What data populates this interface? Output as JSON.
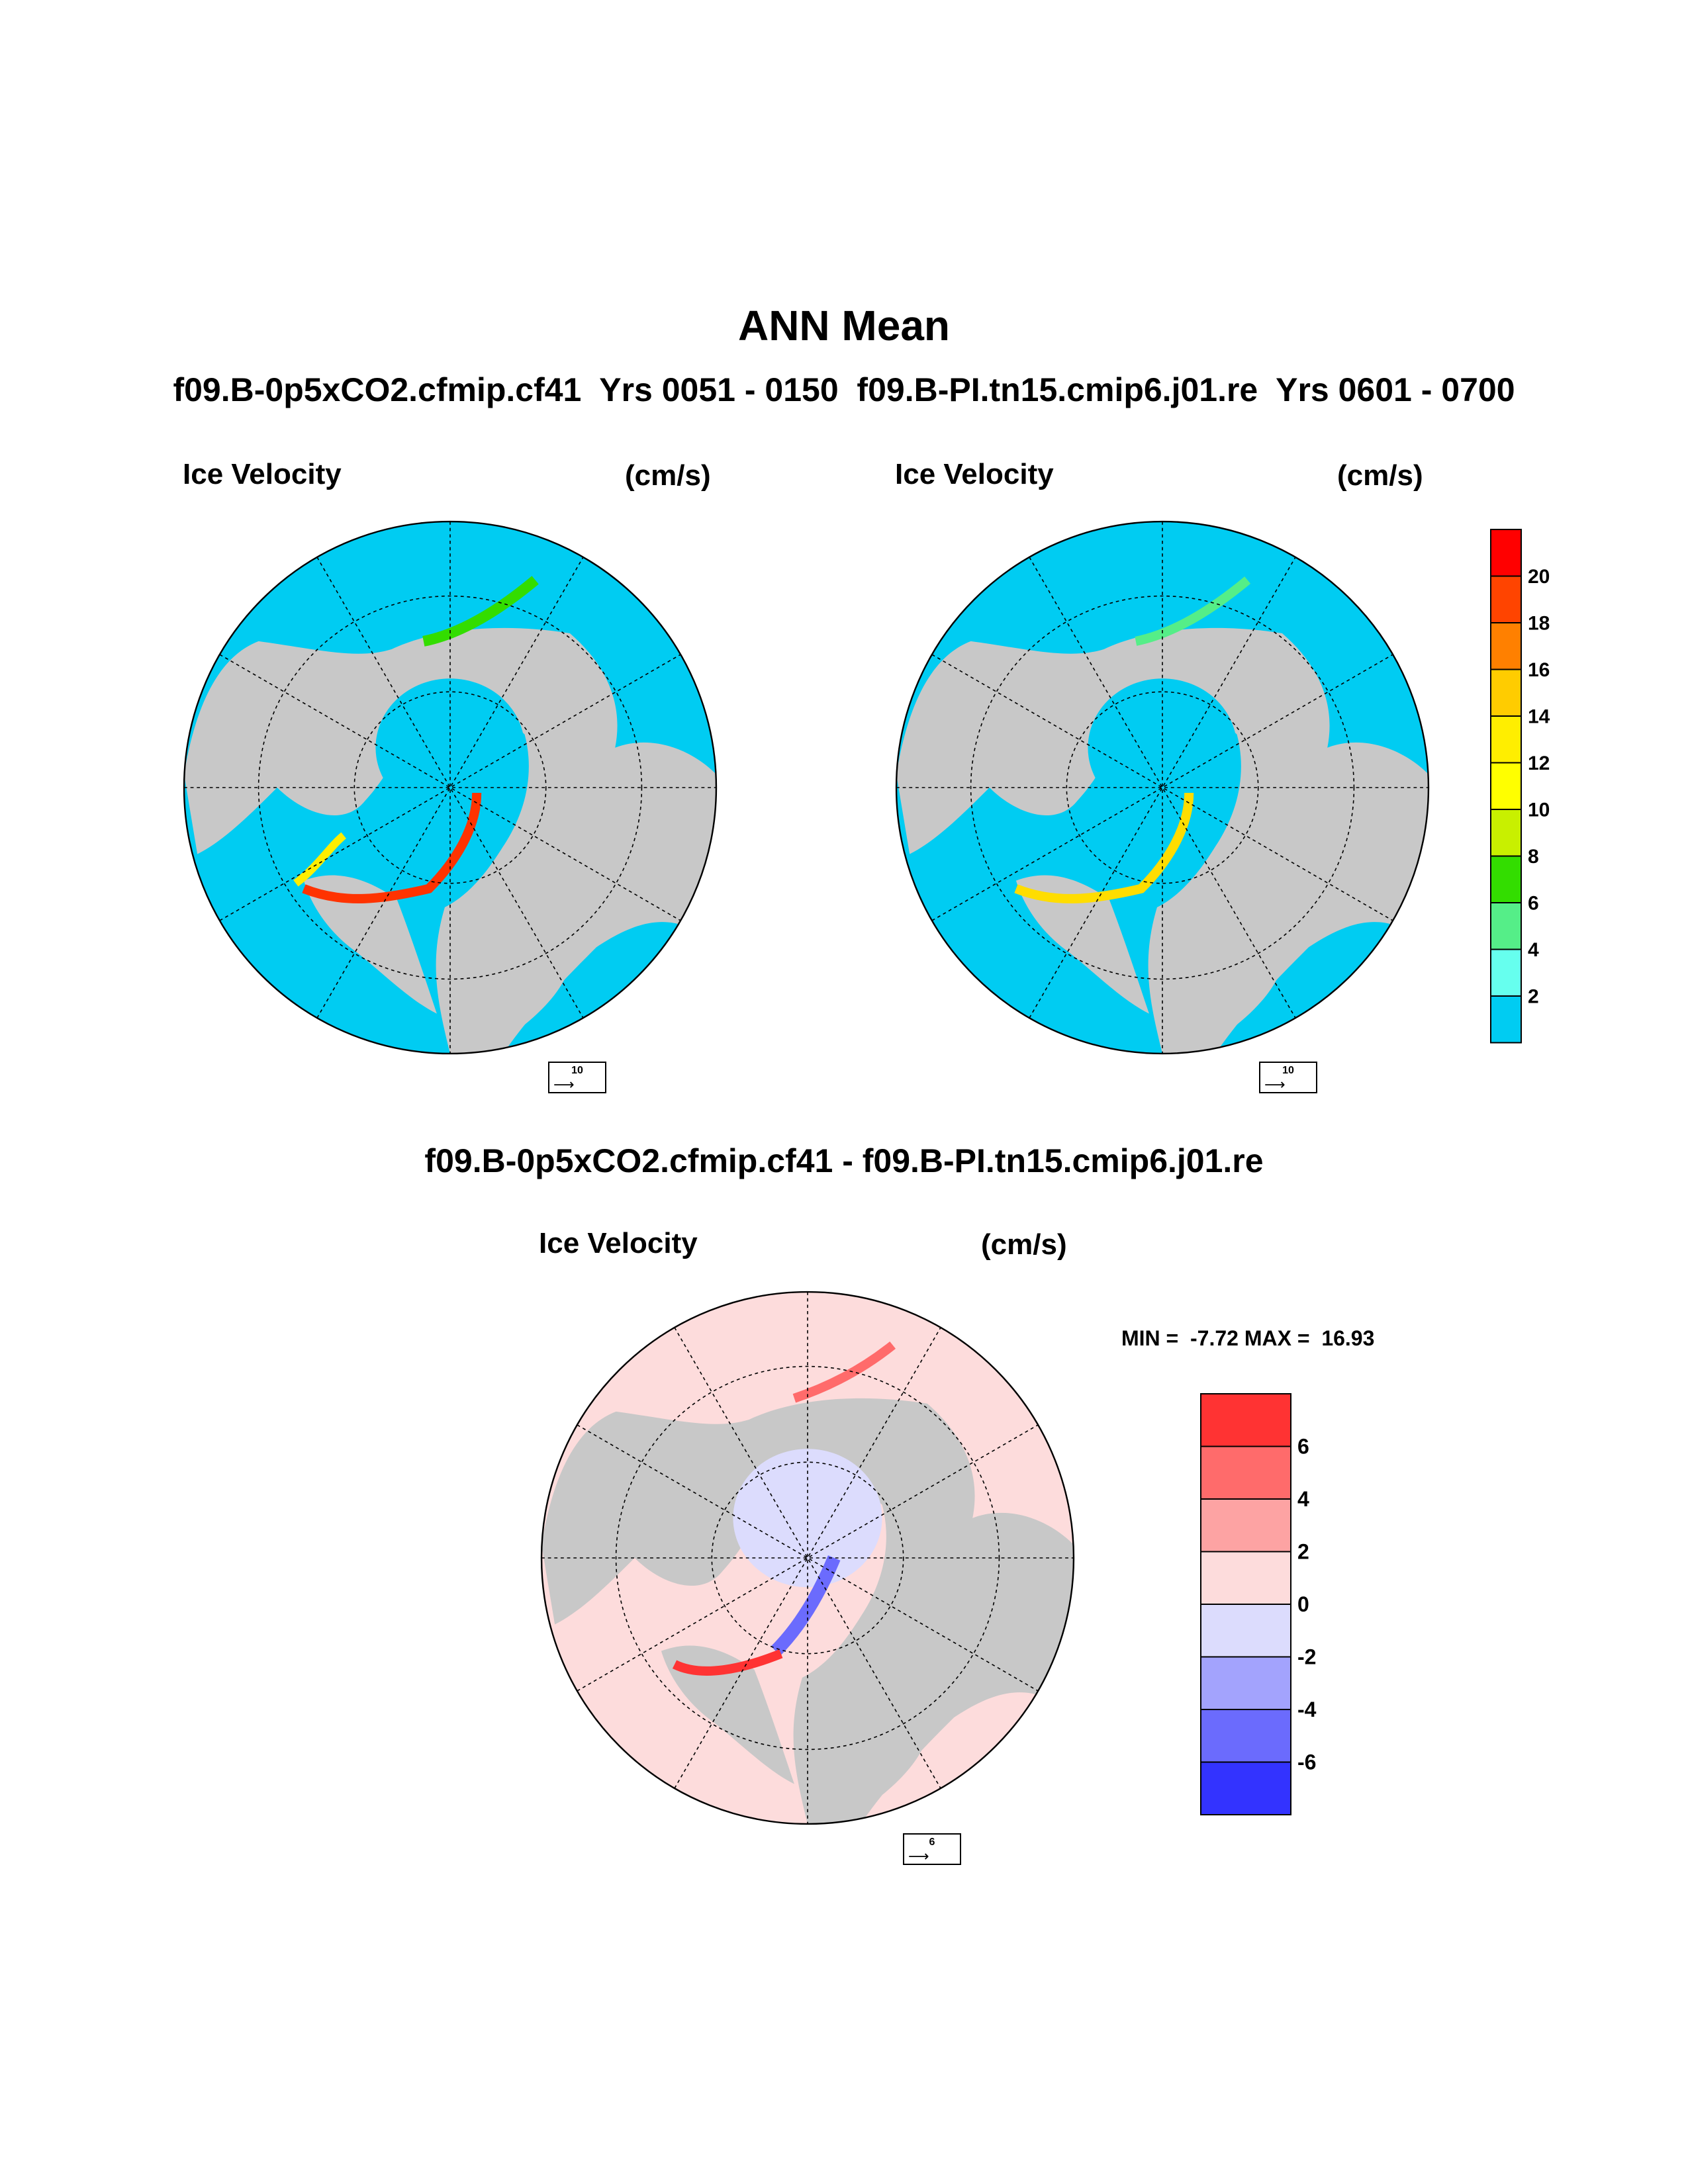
{
  "figure": {
    "title": "ANN Mean",
    "subtitle": "f09.B-0p5xCO2.cfmip.cf41  Yrs 0051 - 0150  f09.B-PI.tn15.cmip6.j01.re  Yrs 0601 - 0700",
    "diff_title": "f09.B-0p5xCO2.cfmip.cf41 - f09.B-PI.tn15.cmip6.j01.re"
  },
  "panels": [
    {
      "variable": "Ice Velocity",
      "units": "(cm/s)",
      "reference_vector": "10"
    },
    {
      "variable": "Ice Velocity",
      "units": "(cm/s)",
      "reference_vector": "10"
    },
    {
      "variable": "Ice Velocity",
      "units": "(cm/s)",
      "reference_vector": "6",
      "stats": "MIN =  -7.72 MAX =  16.93"
    }
  ],
  "colors": {
    "land": "#c8c8c8",
    "ocean_top": "#00ccf2",
    "ocean_diff": "#fddcdc"
  },
  "colorbar_top": {
    "labels": [
      "20",
      "18",
      "16",
      "14",
      "12",
      "10",
      "8",
      "6",
      "4",
      "2"
    ],
    "colors": [
      "#ff0000",
      "#ff4400",
      "#ff8000",
      "#ffcc00",
      "#ffee00",
      "#ffff00",
      "#c8f000",
      "#33dd00",
      "#55ee88",
      "#66ffee",
      "#00ccf2"
    ]
  },
  "colorbar_diff": {
    "labels": [
      "6",
      "4",
      "2",
      "0",
      "-2",
      "-4",
      "-6"
    ],
    "colors": [
      "#ff3333",
      "#ff6b6b",
      "#fda3a3",
      "#fddcdc",
      "#dcdcfd",
      "#a3a3fd",
      "#6b6bfd",
      "#3333ff"
    ]
  }
}
